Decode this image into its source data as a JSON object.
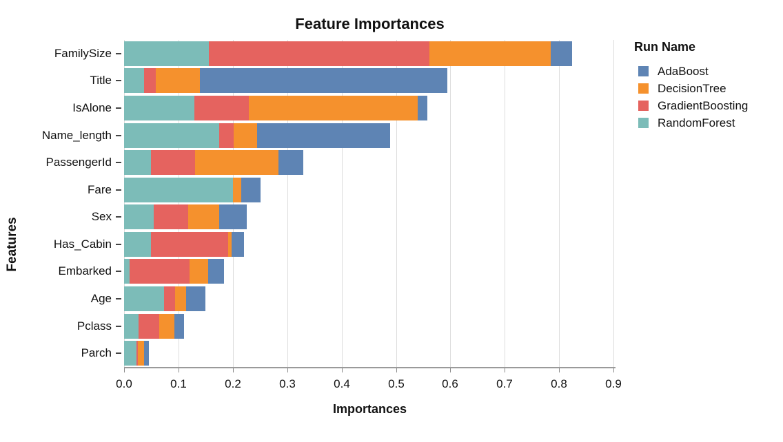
{
  "chart_data": {
    "type": "bar",
    "orientation": "horizontal",
    "stacked": true,
    "title": "Feature Importances",
    "xlabel": "Importances",
    "ylabel": "Features",
    "legend_title": "Run Name",
    "legend_position": "right",
    "grid": true,
    "xlim": [
      0.0,
      0.9
    ],
    "xtick_step": 0.1,
    "categories": [
      "FamilySize",
      "Title",
      "IsAlone",
      "Name_length",
      "PassengerId",
      "Fare",
      "Sex",
      "Has_Cabin",
      "Embarked",
      "Age",
      "Pclass",
      "Parch"
    ],
    "stack_order": [
      "RandomForest",
      "GradientBoosting",
      "DecisionTree",
      "AdaBoost"
    ],
    "series": [
      {
        "name": "AdaBoost",
        "color": "#5e84b4",
        "values": [
          0.039,
          0.455,
          0.018,
          0.245,
          0.045,
          0.035,
          0.05,
          0.022,
          0.029,
          0.035,
          0.017,
          0.009
        ]
      },
      {
        "name": "DecisionTree",
        "color": "#f5912d",
        "values": [
          0.224,
          0.082,
          0.31,
          0.043,
          0.154,
          0.016,
          0.057,
          0.007,
          0.035,
          0.02,
          0.028,
          0.012
        ]
      },
      {
        "name": "GradientBoosting",
        "color": "#e5635f",
        "values": [
          0.405,
          0.021,
          0.101,
          0.026,
          0.08,
          0.0,
          0.064,
          0.142,
          0.11,
          0.021,
          0.038,
          0.002
        ]
      },
      {
        "name": "RandomForest",
        "color": "#7cbcb8",
        "values": [
          0.156,
          0.037,
          0.129,
          0.175,
          0.05,
          0.2,
          0.054,
          0.049,
          0.01,
          0.073,
          0.027,
          0.023
        ]
      }
    ],
    "totals": [
      0.824,
      0.595,
      0.558,
      0.489,
      0.329,
      0.251,
      0.225,
      0.22,
      0.184,
      0.149,
      0.11,
      0.046
    ]
  }
}
